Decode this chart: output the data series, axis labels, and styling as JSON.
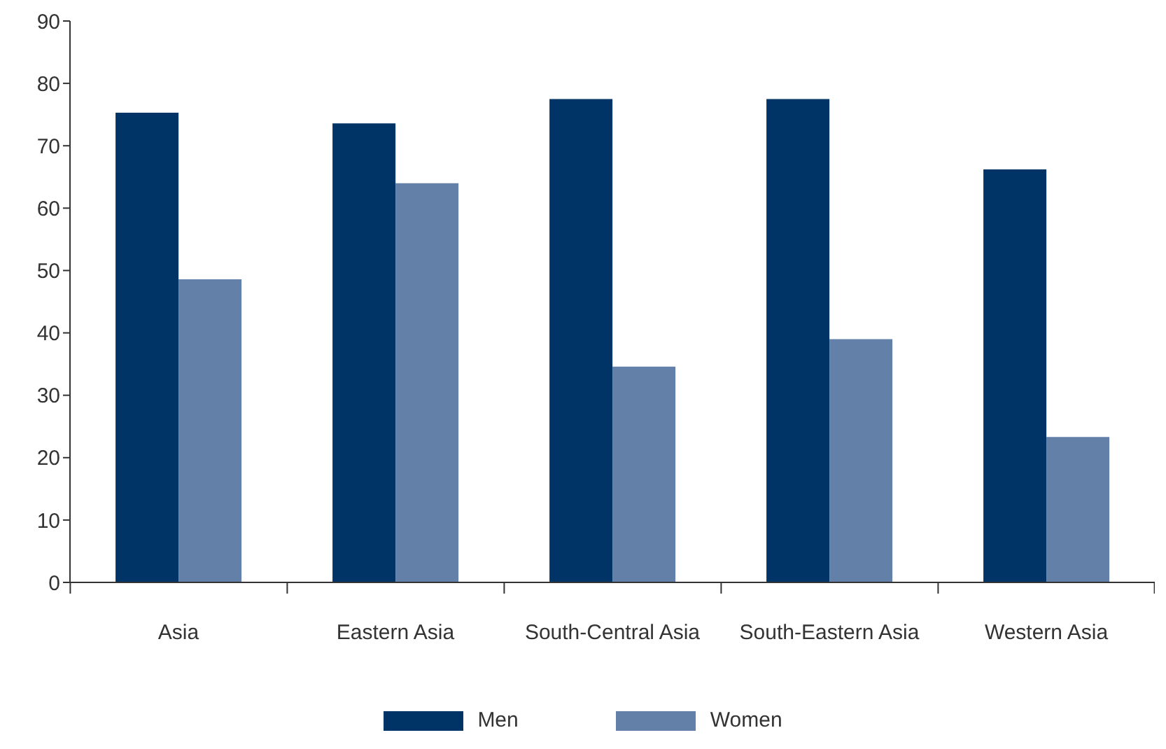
{
  "chart_data": {
    "type": "bar",
    "categories": [
      "Asia",
      "Eastern Asia",
      "South-Central Asia",
      "South-Eastern Asia",
      "Western Asia"
    ],
    "series": [
      {
        "name": "Men",
        "color": "#003366",
        "values": [
          75.3,
          73.6,
          77.5,
          77.5,
          66.2
        ]
      },
      {
        "name": "Women",
        "color": "#6380a8",
        "values": [
          48.6,
          64.0,
          34.6,
          39.0,
          23.3
        ]
      }
    ],
    "ylim": [
      0,
      90
    ],
    "yticks": [
      0,
      10,
      20,
      30,
      40,
      50,
      60,
      70,
      80,
      90
    ],
    "grid": false,
    "legend": "bottom"
  }
}
